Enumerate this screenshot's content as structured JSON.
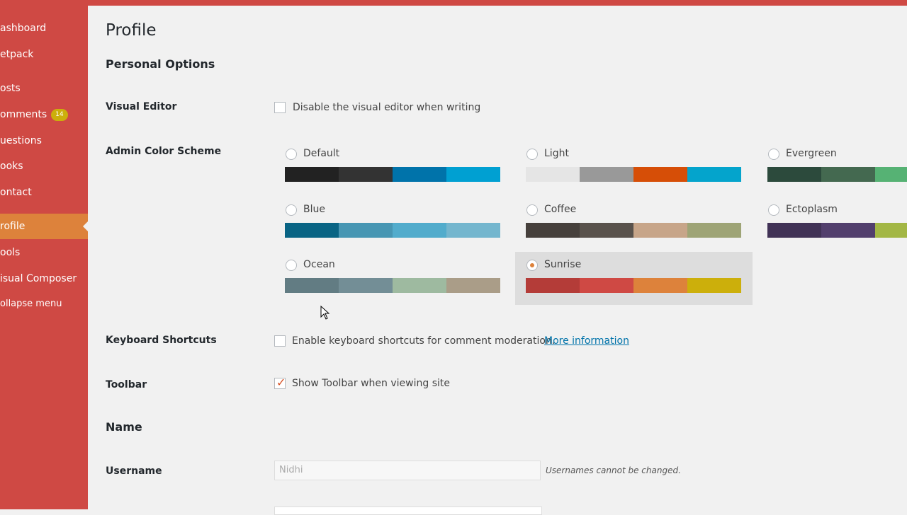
{
  "sidebar": {
    "items": [
      {
        "label": "ashboard"
      },
      {
        "label": "etpack"
      },
      {
        "label": "osts"
      },
      {
        "label": "omments",
        "badge": "14"
      },
      {
        "label": "uestions"
      },
      {
        "label": "ooks"
      },
      {
        "label": "ontact"
      },
      {
        "label": "rofile",
        "active": true
      },
      {
        "label": "ools"
      },
      {
        "label": "isual Composer"
      },
      {
        "label": "ollapse menu"
      }
    ]
  },
  "header": {
    "title": "Profile"
  },
  "sections": {
    "personal_options": "Personal Options",
    "name": "Name"
  },
  "visual_editor": {
    "label": "Visual Editor",
    "option": "Disable the visual editor when writing",
    "checked": false
  },
  "color_scheme": {
    "label": "Admin Color Scheme",
    "selected": "Sunrise",
    "schemes": [
      {
        "name": "Default",
        "colors": [
          "#222222",
          "#333333",
          "#0073aa",
          "#00a0d2"
        ]
      },
      {
        "name": "Light",
        "colors": [
          "#e5e5e5",
          "#999999",
          "#d64e07",
          "#04a4cc"
        ]
      },
      {
        "name": "Evergreen",
        "colors": [
          "#2c4a3c",
          "#446950",
          "#56b274"
        ]
      },
      {
        "name": "Blue",
        "colors": [
          "#096484",
          "#4796b3",
          "#52accc",
          "#74b6ce"
        ]
      },
      {
        "name": "Coffee",
        "colors": [
          "#46403c",
          "#59524c",
          "#c7a589",
          "#9ea476"
        ]
      },
      {
        "name": "Ectoplasm",
        "colors": [
          "#413256",
          "#523f6d",
          "#a3b745"
        ]
      },
      {
        "name": "Ocean",
        "colors": [
          "#627c83",
          "#738e96",
          "#9ebaa0",
          "#aa9d88"
        ]
      },
      {
        "name": "Sunrise",
        "colors": [
          "#b43c38",
          "#cf4944",
          "#dd823b",
          "#ccaf0b"
        ]
      }
    ]
  },
  "keyboard_shortcuts": {
    "label": "Keyboard Shortcuts",
    "option": "Enable keyboard shortcuts for comment moderation.",
    "link": "More information",
    "checked": false
  },
  "toolbar": {
    "label": "Toolbar",
    "option": "Show Toolbar when viewing site",
    "checked": true
  },
  "username": {
    "label": "Username",
    "value": "Nidhi",
    "note": "Usernames cannot be changed."
  }
}
